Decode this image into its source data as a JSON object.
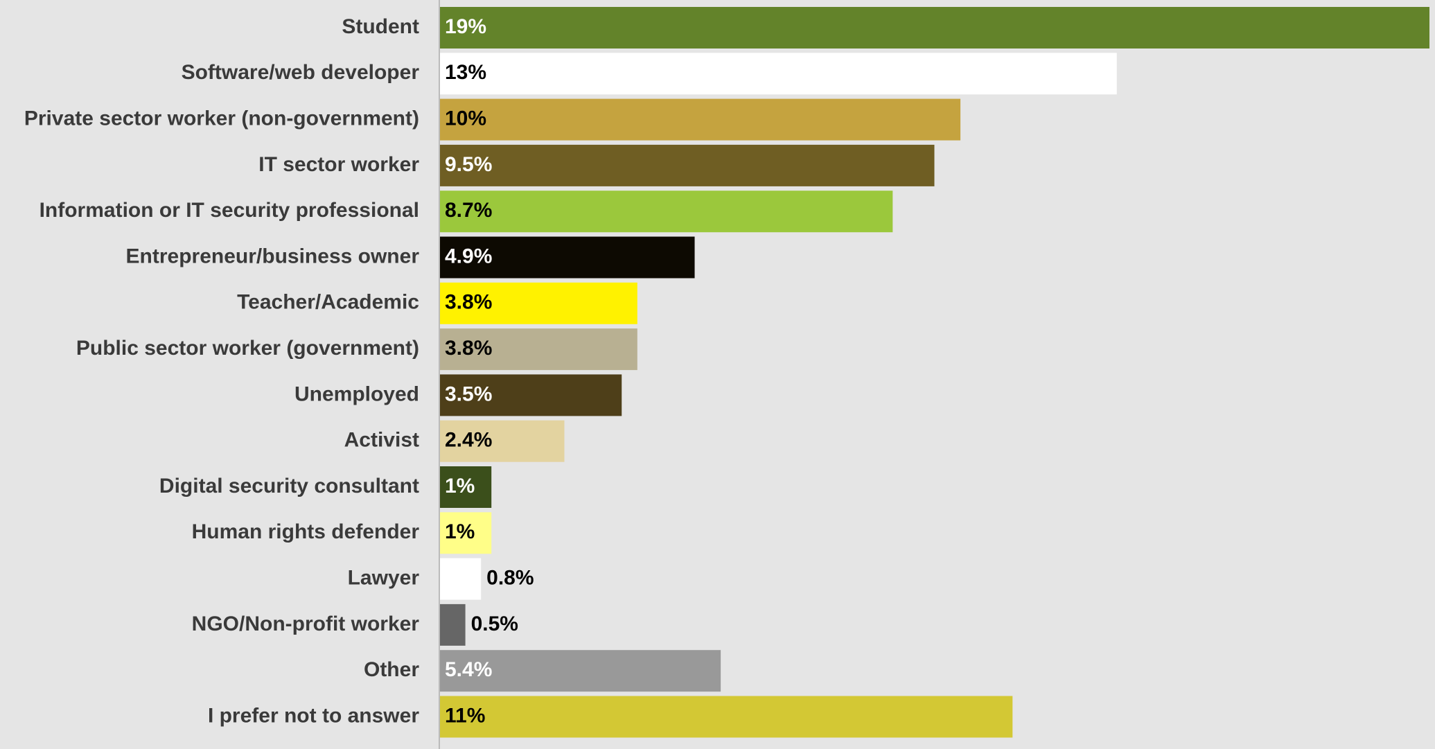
{
  "chart_data": {
    "type": "barh",
    "categories": [
      "Student",
      "Software/web developer",
      "Private sector worker (non-government)",
      "IT sector worker",
      "Information or IT security professional",
      "Entrepreneur/business owner",
      "Teacher/Academic",
      "Public sector worker (government)",
      "Unemployed",
      "Activist",
      "Digital security consultant",
      "Human rights defender",
      "Lawyer",
      "NGO/Non-profit worker",
      "Other",
      "I prefer not to answer"
    ],
    "values": [
      19,
      13,
      10,
      9.5,
      8.7,
      4.9,
      3.8,
      3.8,
      3.5,
      2.4,
      1,
      1,
      0.8,
      0.5,
      5.4,
      11
    ],
    "value_labels": [
      "19%",
      "13%",
      "10%",
      "9.5%",
      "8.7%",
      "4.9%",
      "3.8%",
      "3.8%",
      "3.5%",
      "2.4%",
      "1%",
      "1%",
      "0.8%",
      "0.5%",
      "5.4%",
      "11%"
    ],
    "colors": [
      "#63832a",
      "#ffffff",
      "#c5a33f",
      "#6f5e23",
      "#9bc83c",
      "#0d0a02",
      "#fff200",
      "#b8b092",
      "#4e3f19",
      "#e3d3a0",
      "#3b4f1b",
      "#fffe88",
      "#ffffff",
      "#666666",
      "#999999",
      "#d3c834"
    ]
  }
}
